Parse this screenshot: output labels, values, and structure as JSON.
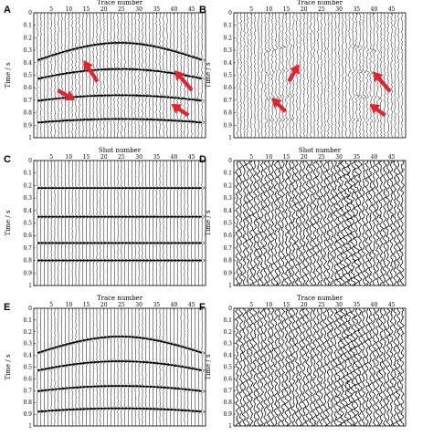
{
  "figure": {
    "panels": [
      {
        "label": "A",
        "x_title": "Trace number",
        "y_title": "Time / s",
        "x_ticks": [
          "5",
          "10",
          "15",
          "20",
          "25",
          "30",
          "35",
          "40",
          "45"
        ],
        "y_ticks": [
          "0",
          "0.1",
          "0.2",
          "0.3",
          "0.4",
          "0.5",
          "0.6",
          "0.7",
          "0.8",
          "0.9",
          "1"
        ],
        "content": "hyperbolic_events_with_noise",
        "arrows": 4
      },
      {
        "label": "B",
        "x_title": "Trace number",
        "y_title": "Time / s",
        "x_ticks": [
          "5",
          "10",
          "15",
          "20",
          "25",
          "30",
          "35",
          "40",
          "45"
        ],
        "y_ticks": [
          "0",
          "0.1",
          "0.2",
          "0.3",
          "0.4",
          "0.5",
          "0.6",
          "0.7",
          "0.8",
          "0.9",
          "1"
        ],
        "content": "residual_noise_with_event_fragments",
        "arrows": 4
      },
      {
        "label": "C",
        "x_title": "Shot number",
        "y_title": "Time / s",
        "x_ticks": [
          "5",
          "10",
          "15",
          "20",
          "25",
          "30",
          "35",
          "40",
          "45"
        ],
        "y_ticks": [
          "0",
          "0.1",
          "0.2",
          "0.3",
          "0.4",
          "0.5",
          "0.6",
          "0.7",
          "0.8",
          "0.9",
          "1"
        ],
        "content": "flat_events",
        "arrows": 0
      },
      {
        "label": "D",
        "x_title": "Shot number",
        "y_title": "Time / s",
        "x_ticks": [
          "5",
          "10",
          "15",
          "20",
          "25",
          "30",
          "35",
          "40",
          "45"
        ],
        "y_ticks": [
          "0",
          "0.1",
          "0.2",
          "0.3",
          "0.4",
          "0.5",
          "0.6",
          "0.7",
          "0.8",
          "0.9",
          "1"
        ],
        "content": "dense_noise",
        "arrows": 0
      },
      {
        "label": "E",
        "x_title": "Trace number",
        "y_title": "Time / s",
        "x_ticks": [
          "5",
          "10",
          "15",
          "20",
          "25",
          "30",
          "35",
          "40",
          "45"
        ],
        "y_ticks": [
          "0",
          "0.1",
          "0.2",
          "0.3",
          "0.4",
          "0.5",
          "0.6",
          "0.7",
          "0.8",
          "0.9",
          "1"
        ],
        "content": "clean_hyperbolic_events",
        "arrows": 0
      },
      {
        "label": "F",
        "x_title": "Trace number",
        "y_title": "Time / s",
        "x_ticks": [
          "5",
          "10",
          "15",
          "20",
          "25",
          "30",
          "35",
          "40",
          "45"
        ],
        "y_ticks": [
          "0",
          "0.1",
          "0.2",
          "0.3",
          "0.4",
          "0.5",
          "0.6",
          "0.7",
          "0.8",
          "0.9",
          "1"
        ],
        "content": "dense_noise",
        "arrows": 0
      }
    ],
    "colors": {
      "trace": "#000000",
      "arrow": "#e8202a",
      "background": "#ffffff"
    }
  }
}
